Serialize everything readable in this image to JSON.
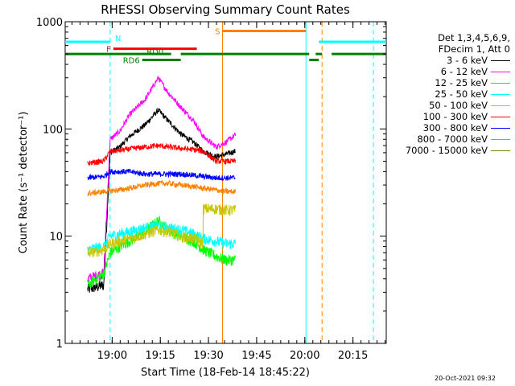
{
  "chart_data": {
    "type": "line",
    "title": "RHESSI Observing Summary Count Rates",
    "xlabel": "Start Time (18-Feb-14 18:45:22)",
    "ylabel": "Count Rate (s⁻¹ detector⁻¹)",
    "yscale": "log",
    "ylim": [
      1,
      1000
    ],
    "xlim_minutes": [
      0,
      100
    ],
    "x_tick_labels": [
      "19:00",
      "19:15",
      "19:30",
      "19:45",
      "20:00",
      "20:15"
    ],
    "x_ticks_minutes": [
      14.63,
      29.63,
      44.63,
      59.63,
      74.63,
      89.63
    ],
    "y_tick_labels": [
      "1",
      "10",
      "100",
      "1000"
    ],
    "y_ticks": [
      1,
      10,
      100,
      1000
    ],
    "data_start_minutes": 7,
    "data_end_minutes": 53,
    "x_key_minutes": [
      7,
      12,
      14,
      17,
      20,
      25,
      29,
      32,
      36,
      40,
      43,
      47,
      50,
      53
    ],
    "series": [
      {
        "name": "3 - 6 keV",
        "color": "#000000",
        "values": [
          3.2,
          3.5,
          60,
          68,
          85,
          110,
          150,
          120,
          90,
          75,
          62,
          55,
          58,
          62
        ]
      },
      {
        "name": "6 - 12 keV",
        "color": "#ff00ff",
        "values": [
          4,
          4.5,
          80,
          95,
          135,
          190,
          300,
          220,
          160,
          120,
          85,
          68,
          75,
          88
        ]
      },
      {
        "name": "12 - 25 keV",
        "color": "#00ff00",
        "values": [
          3.5,
          4.5,
          7,
          8,
          9,
          11,
          14,
          11.5,
          10,
          9,
          7.5,
          6.5,
          6,
          6
        ]
      },
      {
        "name": "25 - 50 keV",
        "color": "#00ffff",
        "values": [
          7.5,
          8,
          10,
          10.5,
          11,
          12,
          12.5,
          12,
          11.5,
          10.5,
          9.5,
          9,
          8.5,
          8.5
        ]
      },
      {
        "name": "50 - 100 keV",
        "color": "#c8c800",
        "values": [
          7,
          7.5,
          8.5,
          9,
          9.5,
          10.5,
          11.5,
          11,
          10,
          9.5,
          8.5,
          8,
          7.5,
          7
        ]
      },
      {
        "name": "100 - 300 keV",
        "color": "#ff0000",
        "values": [
          48,
          50,
          62,
          63,
          65,
          68,
          70,
          68,
          66,
          64,
          62,
          50,
          50,
          50
        ]
      },
      {
        "name": "300 - 800 keV",
        "color": "#0000ff",
        "values": [
          35,
          36,
          40,
          40,
          40,
          38,
          38,
          38,
          38,
          37,
          36,
          35,
          35,
          35
        ]
      },
      {
        "name": "800 - 7000 keV",
        "color": "#ff8000",
        "values": [
          25,
          26,
          26.5,
          27,
          28,
          30,
          31,
          31,
          30,
          29,
          28,
          27,
          26,
          26
        ]
      },
      {
        "name": "7000 - 15000 keV",
        "color": "#808000",
        "values": [
          null,
          null,
          null,
          null,
          null,
          null,
          null,
          null,
          null,
          null,
          null,
          null,
          null,
          null
        ]
      }
    ],
    "low_band_tail_minutes": [
      43,
      47,
      50,
      53
    ],
    "low_band_tail_values": {
      "50 - 100 keV": [
        18,
        18,
        17.5,
        17.5
      ]
    },
    "flag_bars": [
      {
        "label": "N",
        "label_color": "#00ffff",
        "color": "#00ffff",
        "y": 650,
        "spans_minutes": [
          [
            0,
            14
          ],
          [
            79,
            100
          ]
        ]
      },
      {
        "label": "F",
        "label_color": "#ff0000",
        "color": "#ff0000",
        "y": 560,
        "spans_minutes": [
          [
            15,
            41
          ]
        ]
      },
      {
        "label": "S",
        "label_color": "#ff8000",
        "color": "#ff8000",
        "y": 820,
        "spans_minutes": [
          [
            49,
            75
          ]
        ]
      },
      {
        "label": "RD0",
        "label_color": "#008000",
        "color": "#008000",
        "y": 500,
        "spans_minutes": [
          [
            0,
            33
          ],
          [
            36,
            76
          ],
          [
            78,
            80
          ],
          [
            83,
            100
          ]
        ]
      },
      {
        "label": "RD6",
        "label_color": "#008000",
        "color": "#008000",
        "y": 440,
        "spans_minutes": [
          [
            24,
            36
          ],
          [
            76,
            79
          ]
        ]
      }
    ],
    "vertical_lines": [
      {
        "minute": 0,
        "color": "#00ffff",
        "style": "solid"
      },
      {
        "minute": 14,
        "color": "#00ffff",
        "style": "dashed"
      },
      {
        "minute": 49,
        "color": "#ff8000",
        "style": "solid"
      },
      {
        "minute": 75,
        "color": "#00ffff",
        "style": "solid"
      },
      {
        "minute": 80,
        "color": "#ff8000",
        "style": "dashed"
      },
      {
        "minute": 96,
        "color": "#00ffff",
        "style": "dashed"
      }
    ]
  },
  "legend": {
    "header_line1": "Det 1,3,4,5,6,9,",
    "header_line2": "FDecim 1, Att 0"
  },
  "footer_timestamp": "20-Oct-2021 09:32"
}
